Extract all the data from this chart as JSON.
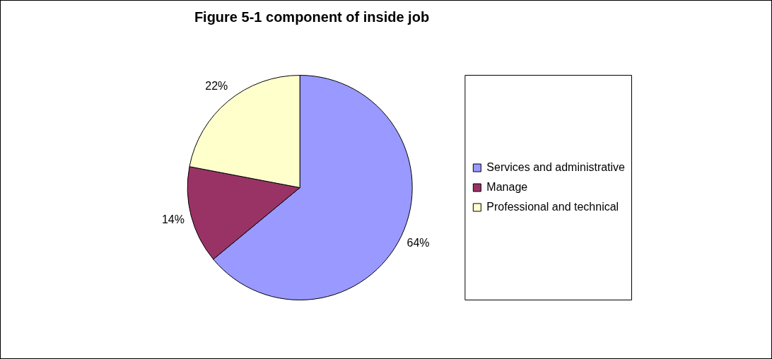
{
  "chart_data": {
    "type": "pie",
    "title": "Figure 5-1 component of inside job",
    "categories": [
      "Services and administrative",
      "Manage",
      "Professional and technical"
    ],
    "values": [
      64,
      14,
      22
    ],
    "value_labels": [
      "64%",
      "14%",
      "22%"
    ],
    "colors": [
      "#9999ff",
      "#993366",
      "#ffffcc"
    ],
    "legend": "right"
  }
}
